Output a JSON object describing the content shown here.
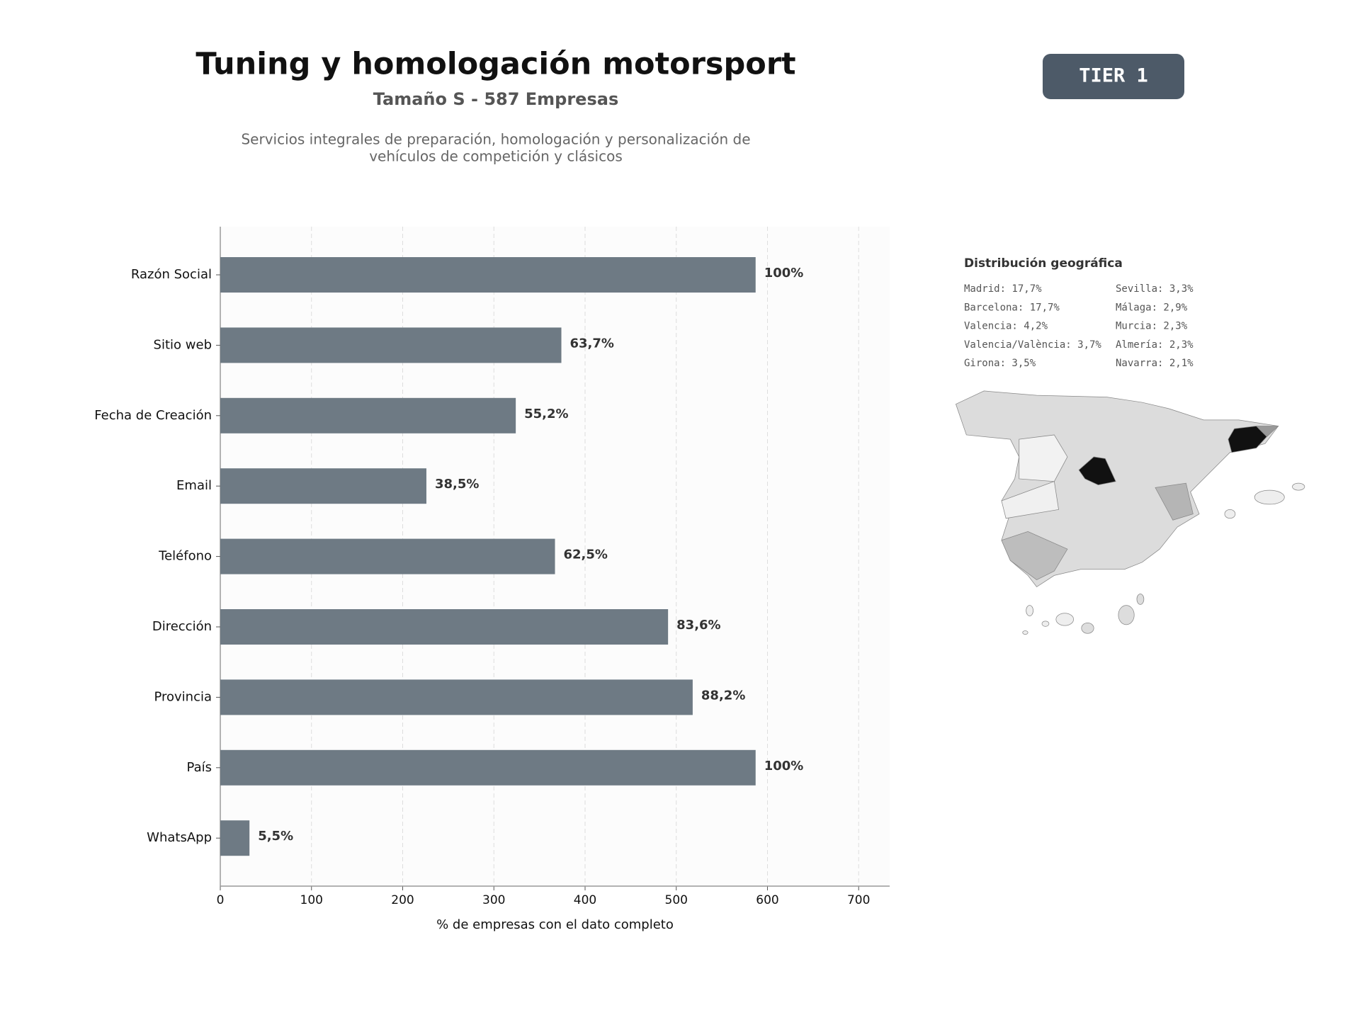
{
  "header": {
    "title": "Tuning y homologación motorsport",
    "subtitle": "Tamaño S - 587 Empresas",
    "description": [
      "Servicios integrales de preparación, homologación y personalización de",
      "vehículos de competición y clásicos"
    ],
    "badge": "TIER 1"
  },
  "geo": {
    "title": "Distribución geográfica",
    "items": [
      [
        "Madrid: 17,7%",
        "Barcelona: 17,7%",
        "Valencia: 4,2%",
        "Valencia/València: 3,7%",
        "Girona: 3,5%"
      ],
      [
        "Sevilla: 3,3%",
        "Málaga: 2,9%",
        "Murcia: 2,3%",
        "Almería: 2,3%",
        "Navarra: 2,1%"
      ]
    ]
  },
  "chart_data": {
    "type": "barh",
    "xlabel": "% de empresas con el dato completo",
    "categories": [
      "Razón Social",
      "Sitio web",
      "Fecha de Creación",
      "Email",
      "Teléfono",
      "Dirección",
      "Provincia",
      "País",
      "WhatsApp"
    ],
    "values": [
      587,
      374,
      324,
      226,
      367,
      491,
      518,
      587,
      32
    ],
    "value_labels": [
      "100%",
      "63,7%",
      "55,2%",
      "38,5%",
      "62,5%",
      "83,6%",
      "88,2%",
      "100%",
      "5,5%"
    ],
    "color": "#6e7a84",
    "xlim": [
      0,
      734
    ],
    "xticks": [
      0,
      100,
      200,
      300,
      400,
      500,
      600,
      700
    ],
    "grid": true
  }
}
